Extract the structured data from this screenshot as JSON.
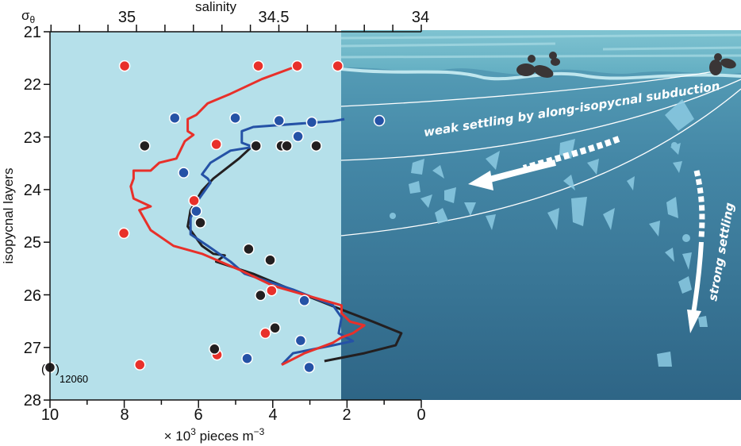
{
  "chart_data": {
    "type": "scatter",
    "xlabel": "× 10",
    "xlabel_sup": "3",
    "xlabel_rest": " pieces m",
    "xlabel_sup2": "−3",
    "ylabel": "isopycnal layers",
    "ylabel_corner": "σ",
    "ylabel_corner_sub": "θ",
    "top_axis_label": "salinity",
    "xlim": [
      10,
      0
    ],
    "ylim": [
      28,
      21
    ],
    "top_xlim": [
      35.3,
      34
    ],
    "x_ticks": [
      10,
      9,
      8,
      7,
      6,
      5,
      4,
      3,
      2,
      1,
      0
    ],
    "x_tick_labels": [
      "10",
      "8",
      "6",
      "4",
      "2",
      "0"
    ],
    "y_tick_labels": [
      "21",
      "22",
      "23",
      "24",
      "25",
      "26",
      "27",
      "28"
    ],
    "top_tick_labels": [
      "35",
      "34.5",
      "34"
    ],
    "colors": {
      "red": "#e8302a",
      "blue": "#2552a6",
      "black": "#231f20"
    },
    "series": [
      {
        "color": "red",
        "points": [
          [
            7.99,
            21.65
          ],
          [
            4.39,
            21.65
          ],
          [
            3.34,
            21.65
          ],
          [
            2.25,
            21.65
          ],
          [
            5.52,
            23.14
          ],
          [
            6.12,
            24.21
          ],
          [
            8.01,
            24.83
          ],
          [
            4.03,
            25.92
          ],
          [
            4.2,
            26.73
          ],
          [
            5.5,
            27.14
          ],
          [
            7.58,
            27.33
          ]
        ],
        "salinity_profile": [
          [
            34.435,
            21.65
          ],
          [
            34.56,
            21.9
          ],
          [
            34.67,
            22.18
          ],
          [
            34.75,
            22.36
          ],
          [
            34.79,
            22.58
          ],
          [
            34.82,
            22.66
          ],
          [
            34.82,
            22.89
          ],
          [
            34.8,
            22.96
          ],
          [
            34.83,
            23.08
          ],
          [
            34.86,
            23.41
          ],
          [
            34.92,
            23.49
          ],
          [
            34.95,
            23.64
          ],
          [
            35.01,
            23.64
          ],
          [
            35.01,
            23.79
          ],
          [
            35.02,
            23.94
          ],
          [
            35.01,
            24.17
          ],
          [
            34.95,
            24.32
          ],
          [
            34.99,
            24.39
          ],
          [
            34.95,
            24.77
          ],
          [
            34.87,
            25.07
          ],
          [
            34.77,
            25.22
          ],
          [
            34.64,
            25.52
          ],
          [
            34.52,
            25.83
          ],
          [
            34.28,
            26.2
          ],
          [
            34.28,
            26.35
          ],
          [
            34.25,
            26.51
          ],
          [
            34.2,
            26.58
          ],
          [
            34.24,
            26.73
          ],
          [
            34.28,
            26.81
          ],
          [
            34.31,
            26.91
          ],
          [
            34.41,
            27.11
          ],
          [
            34.49,
            27.33
          ]
        ]
      },
      {
        "color": "blue",
        "points": [
          [
            6.64,
            22.64
          ],
          [
            5.01,
            22.64
          ],
          [
            3.83,
            22.69
          ],
          [
            2.95,
            22.72
          ],
          [
            1.13,
            22.69
          ],
          [
            3.32,
            22.99
          ],
          [
            6.4,
            23.68
          ],
          [
            6.06,
            24.41
          ],
          [
            3.15,
            26.11
          ],
          [
            3.25,
            26.87
          ],
          [
            4.69,
            27.21
          ],
          [
            3.02,
            27.38
          ]
        ],
        "salinity_profile": [
          [
            34.27,
            22.66
          ],
          [
            34.31,
            22.7
          ],
          [
            34.59,
            22.81
          ],
          [
            34.63,
            22.89
          ],
          [
            34.63,
            23.11
          ],
          [
            34.59,
            23.19
          ],
          [
            34.67,
            23.26
          ],
          [
            34.74,
            23.49
          ],
          [
            34.77,
            23.71
          ],
          [
            34.75,
            23.79
          ],
          [
            34.74,
            23.87
          ],
          [
            34.78,
            24.17
          ],
          [
            34.81,
            24.54
          ],
          [
            34.81,
            24.85
          ],
          [
            34.75,
            25.07
          ],
          [
            34.67,
            25.37
          ],
          [
            34.62,
            25.6
          ],
          [
            34.45,
            25.9
          ],
          [
            34.31,
            26.2
          ],
          [
            34.28,
            26.43
          ],
          [
            34.29,
            26.73
          ],
          [
            34.24,
            26.88
          ],
          [
            34.31,
            26.96
          ],
          [
            34.45,
            27.11
          ],
          [
            34.49,
            27.33
          ]
        ]
      },
      {
        "color": "black",
        "points": [
          [
            7.45,
            23.17
          ],
          [
            4.45,
            23.17
          ],
          [
            3.77,
            23.17
          ],
          [
            3.62,
            23.17
          ],
          [
            2.83,
            23.17
          ],
          [
            5.95,
            24.63
          ],
          [
            4.65,
            25.13
          ],
          [
            4.07,
            25.34
          ],
          [
            4.33,
            26.01
          ],
          [
            3.94,
            26.63
          ],
          [
            5.57,
            27.03
          ],
          [
            10.0,
            27.38
          ]
        ],
        "salinity_profile": [
          [
            34.59,
            23.16
          ],
          [
            34.64,
            23.41
          ],
          [
            34.73,
            23.79
          ],
          [
            34.77,
            24.02
          ],
          [
            34.81,
            24.39
          ],
          [
            34.82,
            24.7
          ],
          [
            34.77,
            25.07
          ],
          [
            34.73,
            25.22
          ],
          [
            34.69,
            25.25
          ],
          [
            34.72,
            25.37
          ],
          [
            34.59,
            25.6
          ],
          [
            34.42,
            25.98
          ],
          [
            34.28,
            26.28
          ],
          [
            34.17,
            26.51
          ],
          [
            34.07,
            26.73
          ],
          [
            34.09,
            26.96
          ],
          [
            34.2,
            27.11
          ],
          [
            34.34,
            27.26
          ]
        ]
      }
    ],
    "annotation": {
      "open": "(",
      "close": ")",
      "value": "12060"
    }
  },
  "illustration": {
    "weak_settling_text": "weak settling by along-isopycnal subduction",
    "strong_settling_text": "strong settling",
    "colors": {
      "panel_light": "#b5e0ea",
      "ocean_top": "#4f97b1",
      "ocean_bottom": "#2e6686",
      "surface": "#7cc0cf"
    }
  }
}
